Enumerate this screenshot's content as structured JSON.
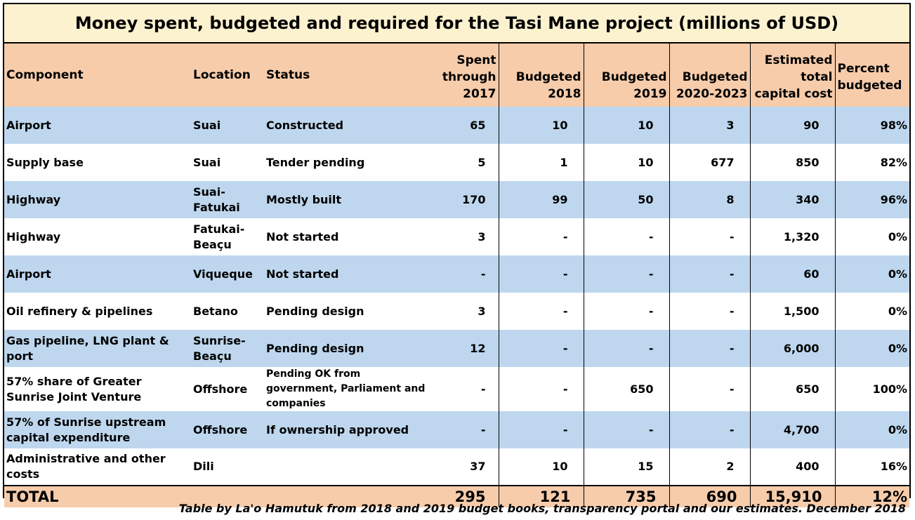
{
  "title": "Money spent, budgeted and required for the Tasi Mane project (millions of USD)",
  "headers": {
    "component": "Component",
    "location": "Location",
    "status": "Status",
    "spent_through_2017": [
      "Spent",
      "through",
      "2017"
    ],
    "budgeted_2018": [
      "Budgeted",
      "2018"
    ],
    "budgeted_2019": [
      "Budgeted",
      "2019"
    ],
    "budgeted_2020_2023": [
      "Budgeted",
      "2020-2023"
    ],
    "estimated_total": [
      "Estimated",
      "total",
      "capital cost"
    ],
    "percent_budgeted": [
      "Percent",
      "budgeted"
    ]
  },
  "rows": [
    {
      "component": "Airport",
      "location": "Suai",
      "status": "Constructed",
      "spent": "65",
      "b2018": "10",
      "b2019": "10",
      "b2020": "3",
      "total": "90",
      "pct": "98%"
    },
    {
      "component": "Supply base",
      "location": "Suai",
      "status": "Tender pending",
      "spent": "5",
      "b2018": "1",
      "b2019": "10",
      "b2020": "677",
      "total": "850",
      "pct": "82%"
    },
    {
      "component": "Highway",
      "location": "Suai-Fatukai",
      "status": "Mostly built",
      "spent": "170",
      "b2018": "99",
      "b2019": "50",
      "b2020": "8",
      "total": "340",
      "pct": "96%"
    },
    {
      "component": "Highway",
      "location": "Fatukai-Beaçu",
      "status": "Not started",
      "spent": "3",
      "b2018": "-",
      "b2019": "-",
      "b2020": "-",
      "total": "1,320",
      "pct": "0%"
    },
    {
      "component": "Airport",
      "location": "Viqueque",
      "status": "Not started",
      "spent": "-",
      "b2018": "-",
      "b2019": "-",
      "b2020": "-",
      "total": "60",
      "pct": "0%"
    },
    {
      "component": "Oil refinery & pipelines",
      "location": "Betano",
      "status": "Pending design",
      "spent": "3",
      "b2018": "-",
      "b2019": "-",
      "b2020": "-",
      "total": "1,500",
      "pct": "0%"
    },
    {
      "component": "Gas pipeline, LNG plant & port",
      "location": "Sunrise-Beaçu",
      "status": "Pending design",
      "spent": "12",
      "b2018": "-",
      "b2019": "-",
      "b2020": "-",
      "total": "6,000",
      "pct": "0%"
    },
    {
      "component": "57% share of Greater Sunrise Joint Venture",
      "location": "Offshore",
      "status": "Pending OK from government, Parliament and companies",
      "spent": "-",
      "b2018": "-",
      "b2019": "650",
      "b2020": "-",
      "total": "650",
      "pct": "100%"
    },
    {
      "component": "57% of Sunrise upstream capital expenditure",
      "location": "Offshore",
      "status": "If ownership approved",
      "spent": "-",
      "b2018": "-",
      "b2019": "-",
      "b2020": "-",
      "total": "4,700",
      "pct": "0%"
    },
    {
      "component": "Administrative and other costs",
      "location": "Dili",
      "status": "",
      "spent": "37",
      "b2018": "10",
      "b2019": "15",
      "b2020": "2",
      "total": "400",
      "pct": "16%"
    }
  ],
  "total": {
    "label": "TOTAL",
    "spent": "295",
    "b2018": "121",
    "b2019": "735",
    "b2020": "690",
    "total": "15,910",
    "pct": "12%"
  },
  "footnote": "Table by La'o Hamutuk from 2018 and 2019 budget books, transparency portal and our estimates.  December 2018"
}
